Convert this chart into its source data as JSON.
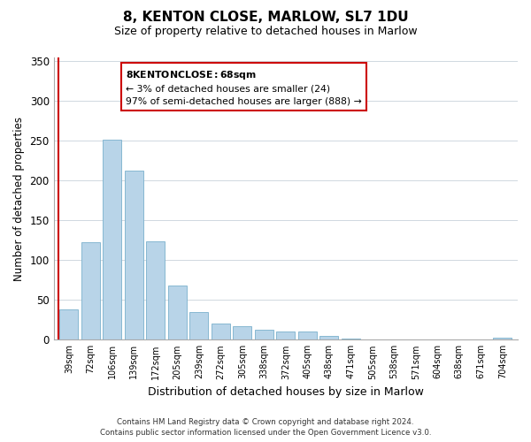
{
  "title": "8, KENTON CLOSE, MARLOW, SL7 1DU",
  "subtitle": "Size of property relative to detached houses in Marlow",
  "xlabel": "Distribution of detached houses by size in Marlow",
  "ylabel": "Number of detached properties",
  "bar_labels": [
    "39sqm",
    "72sqm",
    "106sqm",
    "139sqm",
    "172sqm",
    "205sqm",
    "239sqm",
    "272sqm",
    "305sqm",
    "338sqm",
    "372sqm",
    "405sqm",
    "438sqm",
    "471sqm",
    "505sqm",
    "538sqm",
    "571sqm",
    "604sqm",
    "638sqm",
    "671sqm",
    "704sqm"
  ],
  "bar_values": [
    38,
    123,
    252,
    213,
    124,
    68,
    35,
    20,
    17,
    13,
    10,
    10,
    5,
    1,
    0,
    0,
    0,
    0,
    0,
    0,
    3
  ],
  "bar_color": "#b8d4e8",
  "normal_bar_edge_color": "#7ab0cc",
  "ylim": [
    0,
    355
  ],
  "yticks": [
    0,
    50,
    100,
    150,
    200,
    250,
    300,
    350
  ],
  "red_line_x": -0.5,
  "annotation_title": "8 KENTON CLOSE: 68sqm",
  "annotation_line1": "← 3% of detached houses are smaller (24)",
  "annotation_line2": "97% of semi-detached houses are larger (888) →",
  "annotation_box_color": "#ffffff",
  "annotation_box_edge_color": "#cc0000",
  "footer_line1": "Contains HM Land Registry data © Crown copyright and database right 2024.",
  "footer_line2": "Contains public sector information licensed under the Open Government Licence v3.0.",
  "background_color": "#ffffff",
  "grid_color": "#d0d8e0"
}
